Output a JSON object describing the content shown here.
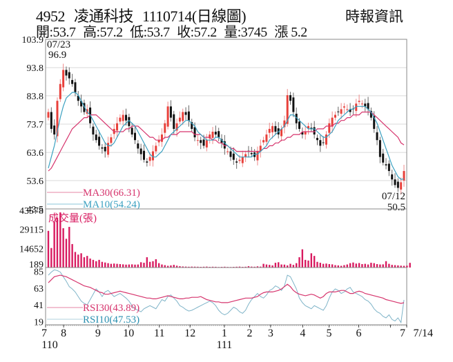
{
  "header": {
    "stock_code": "4952",
    "stock_name": "凌通科技",
    "date_label": "1110714(日線圖)",
    "source": "時報資訊",
    "ohlc": {
      "open": "開:53.7",
      "high": "高:57.2",
      "low": "低:53.7",
      "close": "收:57.2",
      "volume": "量:3745",
      "change": "漲 5.2"
    }
  },
  "colors": {
    "up": "#e8403a",
    "down": "#111111",
    "ma30": "#d6336c",
    "ma10": "#3aa0c0",
    "volume": "#d81b60",
    "rsi30": "#d6336c",
    "rsi10": "#7fb4c8",
    "grid": "#d9d9d9",
    "frame": "#888888"
  },
  "chart_data": [
    {
      "type": "candlestick",
      "title": "4952 凌通科技 1110714(日線圖)",
      "panel": "price",
      "ylim": [
        43.5,
        103.9
      ],
      "yticks": [
        103.9,
        93.8,
        83.8,
        73.7,
        63.6,
        53.6,
        43.5
      ],
      "annotations": [
        {
          "label": "07/23",
          "value": "96.9",
          "type": "high"
        },
        {
          "label": "07/12",
          "value": "50.5",
          "type": "low"
        }
      ],
      "legend": [
        {
          "name": "MA30",
          "label": "MA30(66.31)",
          "value": 66.31
        },
        {
          "name": "MA10",
          "label": "MA10(54.24)",
          "value": 54.24
        }
      ],
      "close_series": [
        78,
        72,
        70,
        82,
        88,
        93,
        91,
        90,
        88,
        85,
        82,
        80,
        78,
        79,
        74,
        70,
        68,
        66,
        65,
        64,
        67,
        69,
        72,
        74,
        76,
        77,
        75,
        73,
        70,
        68,
        65,
        63,
        61,
        60,
        62,
        64,
        66,
        68,
        70,
        74,
        80,
        76,
        72,
        74,
        76,
        78,
        77,
        75,
        72,
        69,
        68,
        67,
        66,
        68,
        70,
        71,
        70,
        69,
        67,
        65,
        64,
        62,
        61,
        60,
        61,
        62,
        63,
        64,
        63,
        62,
        64,
        66,
        68,
        70,
        72,
        73,
        71,
        70,
        72,
        75,
        84,
        82,
        78,
        74,
        72,
        70,
        71,
        73,
        72,
        70,
        68,
        66,
        67,
        70,
        74,
        76,
        77,
        78,
        79,
        80,
        79,
        78,
        79,
        81,
        82,
        81,
        80,
        79,
        76,
        72,
        68,
        62,
        60,
        59,
        57,
        54,
        52,
        51,
        53,
        57
      ],
      "ma10_series": [
        58,
        62,
        66,
        71,
        76,
        80,
        83,
        84,
        85,
        85,
        84,
        82,
        80,
        78,
        77,
        75,
        73,
        71,
        69,
        67,
        66,
        66,
        67,
        69,
        71,
        73,
        74,
        75,
        74,
        73,
        71,
        69,
        67,
        65,
        63,
        62,
        62,
        63,
        64,
        66,
        68,
        70,
        71,
        72,
        73,
        74,
        75,
        75,
        74,
        73,
        71,
        70,
        69,
        68,
        68,
        68,
        69,
        69,
        68,
        67,
        66,
        65,
        64,
        63,
        62,
        62,
        62,
        62,
        62,
        63,
        63,
        64,
        65,
        66,
        68,
        69,
        70,
        71,
        72,
        73,
        75,
        77,
        77,
        76,
        75,
        74,
        73,
        72,
        72,
        72,
        71,
        70,
        69,
        69,
        70,
        71,
        73,
        75,
        76,
        77,
        78,
        79,
        79,
        80,
        80,
        80,
        80,
        79,
        78,
        76,
        74,
        71,
        68,
        65,
        62,
        59,
        57,
        55,
        54,
        54.24
      ],
      "ma30_series": [
        57,
        58,
        60,
        62,
        64,
        66,
        68,
        70,
        72,
        73,
        74,
        75,
        76,
        76,
        77,
        77,
        77,
        76,
        75,
        74,
        73,
        72,
        71,
        71,
        71,
        71,
        72,
        72,
        73,
        73,
        73,
        72,
        71,
        70,
        69,
        69,
        68,
        68,
        68,
        69,
        69,
        70,
        70,
        70,
        71,
        71,
        71,
        71,
        71,
        70,
        70,
        70,
        69,
        69,
        69,
        68,
        68,
        67,
        67,
        66,
        66,
        65,
        65,
        64,
        64,
        64,
        64,
        64,
        64,
        64,
        64,
        64,
        65,
        65,
        66,
        66,
        67,
        67,
        68,
        68,
        69,
        69,
        70,
        70,
        70,
        71,
        71,
        71,
        71,
        71,
        72,
        72,
        72,
        73,
        73,
        73,
        74,
        74,
        75,
        75,
        76,
        76,
        77,
        77,
        77,
        78,
        78,
        78,
        78,
        77,
        76,
        75,
        74,
        73,
        72,
        71,
        70,
        69,
        67,
        66.31
      ]
    },
    {
      "type": "bar",
      "panel": "volume",
      "title": "成交量(張)",
      "ylim": [
        189,
        43578
      ],
      "yticks": [
        43578,
        29115,
        14652,
        189
      ],
      "values": [
        28000,
        15000,
        35000,
        38000,
        42000,
        30000,
        22000,
        31000,
        18000,
        12000,
        10000,
        11000,
        8000,
        9000,
        7000,
        6000,
        5000,
        6000,
        4500,
        4000,
        3500,
        3000,
        3200,
        3000,
        2800,
        2600,
        2400,
        2500,
        2600,
        2400,
        2500,
        4200,
        3800,
        8000,
        4500,
        5000,
        6500,
        3500,
        2500,
        2000,
        1500,
        1800,
        2200,
        1600,
        1200,
        1000,
        900,
        800,
        900,
        850,
        800,
        700,
        800,
        900,
        700,
        800,
        750,
        600,
        700,
        800,
        650,
        600,
        700,
        800,
        900,
        700,
        800,
        1200,
        900,
        800,
        1100,
        900,
        3000,
        2500,
        2200,
        1800,
        3800,
        4200,
        2500,
        2400,
        1800,
        3000,
        2200,
        3500,
        8000,
        14000,
        6000,
        5500,
        11000,
        9000,
        4500,
        3800,
        3000,
        3200,
        2800,
        2600,
        2000,
        1800,
        1500,
        2000,
        2500,
        3500,
        4000,
        3200,
        3600,
        2800,
        3000,
        2500,
        3800,
        3500,
        2800,
        2500,
        2600,
        5000,
        3000,
        2200,
        2000,
        1800,
        1600,
        1500,
        1600,
        3745
      ]
    },
    {
      "type": "line",
      "panel": "rsi",
      "ylim": [
        15,
        90
      ],
      "yticks": [
        85,
        63,
        41,
        19
      ],
      "series": [
        {
          "name": "RSI30",
          "label": "RSI30(43.89)",
          "last": 43.89,
          "values": [
            70,
            74,
            78,
            79,
            80,
            79,
            78,
            76,
            74,
            72,
            70,
            68,
            66,
            65,
            64,
            62,
            60,
            58,
            57,
            55,
            55,
            56,
            57,
            58,
            59,
            58,
            57,
            56,
            55,
            54,
            53,
            52,
            51,
            50,
            50,
            49,
            49,
            50,
            51,
            52,
            53,
            52,
            51,
            50,
            49,
            49,
            50,
            50,
            51,
            51,
            51,
            52,
            50,
            48,
            47,
            46,
            45,
            45,
            44,
            44,
            44,
            45,
            46,
            47,
            48,
            49,
            50,
            50,
            50,
            51,
            52,
            55,
            57,
            58,
            58,
            58,
            59,
            60,
            62,
            65,
            68,
            65,
            60,
            57,
            55,
            54,
            53,
            54,
            55,
            54,
            52,
            50,
            52,
            56,
            58,
            58,
            58,
            59,
            60,
            60,
            58,
            56,
            56,
            58,
            59,
            58,
            56,
            55,
            54,
            53,
            52,
            51,
            50,
            48,
            47,
            46,
            45,
            44,
            43,
            43.89
          ]
        },
        {
          "name": "RSI10",
          "label": "RSI10(47.53)",
          "last": 47.53,
          "values": [
            80,
            84,
            87,
            86,
            84,
            78,
            72,
            65,
            62,
            58,
            52,
            46,
            43,
            41,
            48,
            55,
            62,
            58,
            52,
            58,
            60,
            56,
            52,
            54,
            56,
            53,
            50,
            46,
            40,
            36,
            34,
            32,
            36,
            38,
            40,
            38,
            36,
            42,
            48,
            46,
            52,
            54,
            50,
            46,
            40,
            38,
            35,
            33,
            34,
            36,
            38,
            40,
            42,
            44,
            46,
            44,
            40,
            34,
            30,
            28,
            30,
            34,
            38,
            36,
            32,
            30,
            34,
            42,
            48,
            52,
            56,
            52,
            50,
            54,
            60,
            62,
            66,
            64,
            60,
            66,
            80,
            78,
            70,
            62,
            50,
            44,
            40,
            38,
            36,
            40,
            38,
            36,
            34,
            40,
            50,
            58,
            62,
            60,
            56,
            58,
            62,
            64,
            58,
            56,
            54,
            52,
            48,
            46,
            42,
            36,
            32,
            30,
            26,
            24,
            28,
            22,
            20,
            24,
            18,
            47.53
          ]
        }
      ]
    }
  ],
  "x_axis": {
    "ticks": [
      {
        "label": "7",
        "pos": 0
      },
      {
        "label": "8",
        "pos": 0.05
      },
      {
        "label": "9",
        "pos": 0.145
      },
      {
        "label": "10",
        "pos": 0.23
      },
      {
        "label": "11",
        "pos": 0.315
      },
      {
        "label": "12",
        "pos": 0.4
      },
      {
        "label": "1",
        "pos": 0.495
      },
      {
        "label": "2",
        "pos": 0.565
      },
      {
        "label": "3",
        "pos": 0.623
      },
      {
        "label": "4",
        "pos": 0.712
      },
      {
        "label": "5",
        "pos": 0.785
      },
      {
        "label": "6",
        "pos": 0.867
      },
      {
        "label": "7",
        "pos": 0.955
      },
      {
        "label": "7/14",
        "pos": 1.0
      }
    ],
    "year_labels": [
      {
        "label": "110",
        "pos": 0
      },
      {
        "label": "111",
        "pos": 0.495
      }
    ]
  }
}
